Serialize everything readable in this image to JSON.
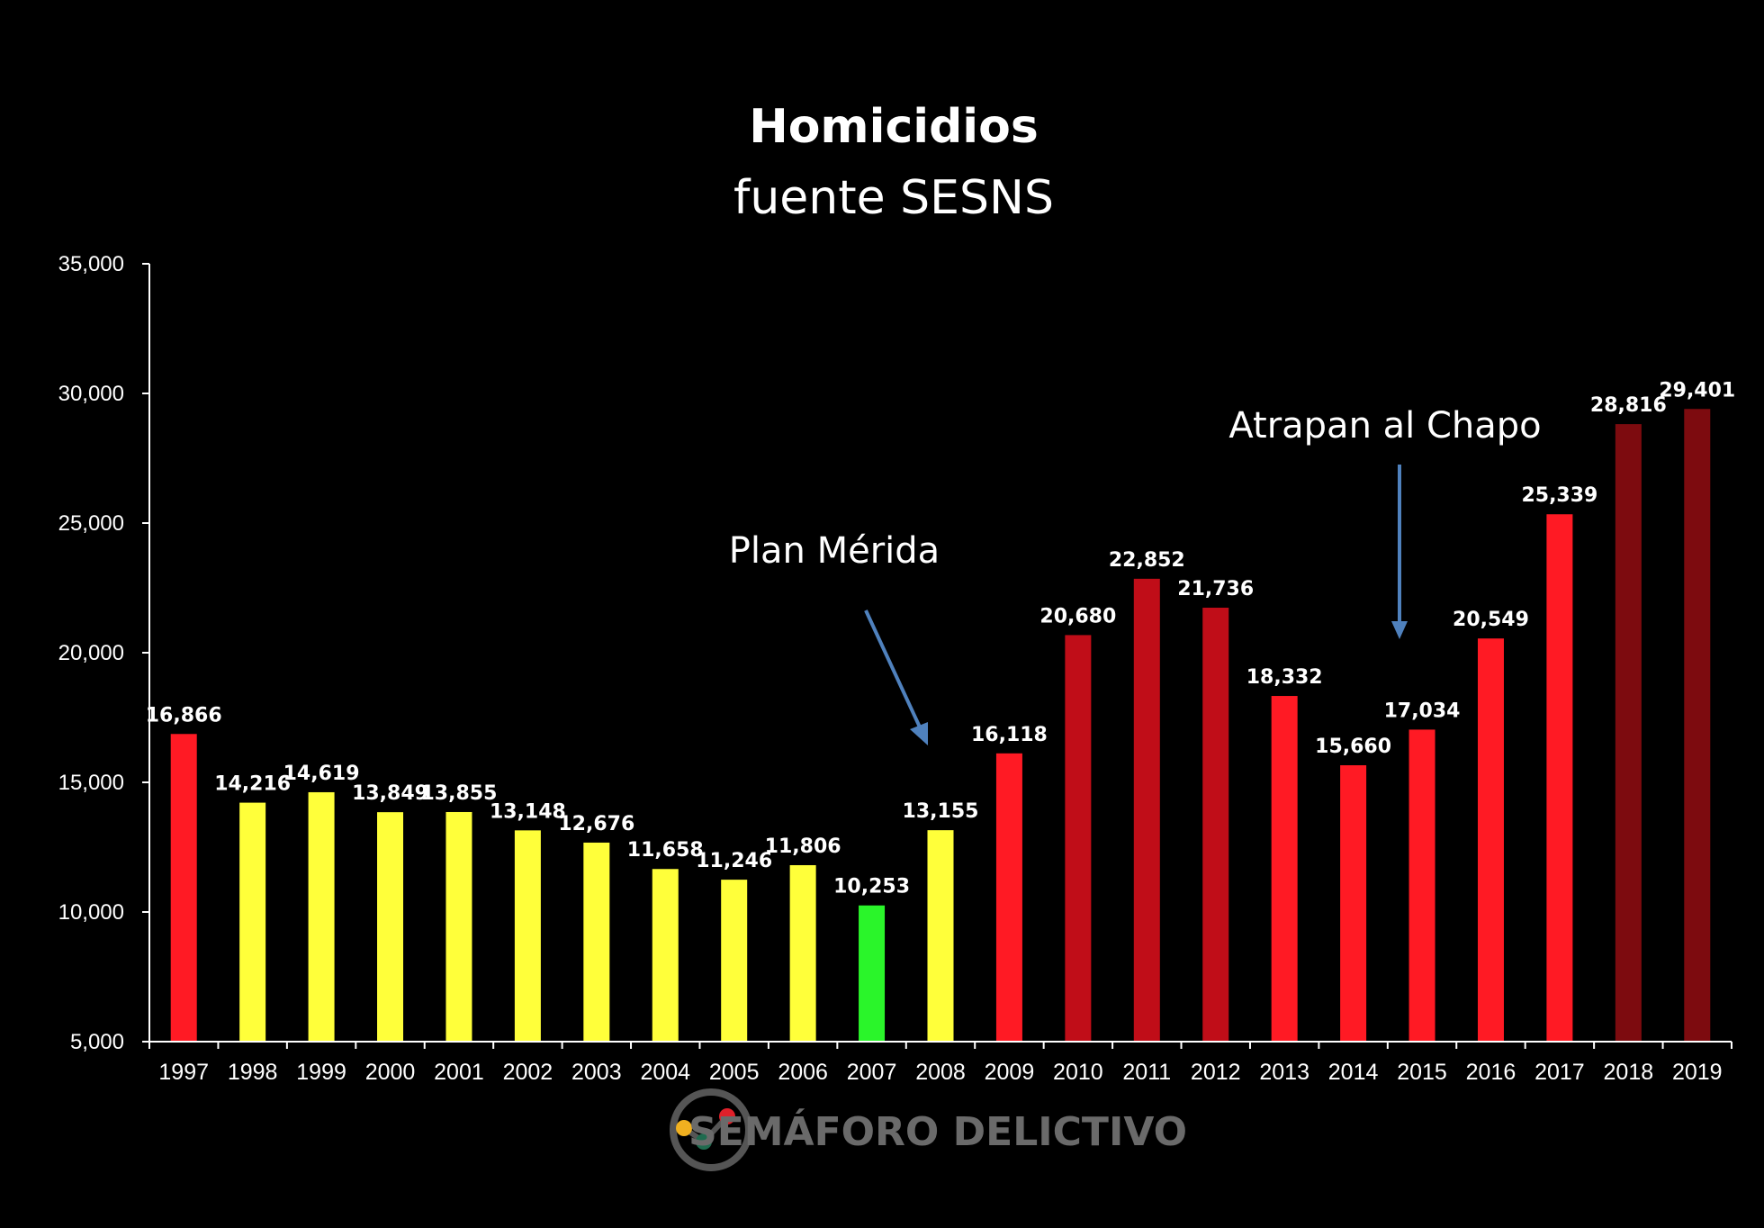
{
  "chart_data": {
    "type": "bar",
    "title": "Homicidios",
    "subtitle": "fuente SESNS",
    "categories": [
      "1997",
      "1998",
      "1999",
      "2000",
      "2001",
      "2002",
      "2003",
      "2004",
      "2005",
      "2006",
      "2007",
      "2008",
      "2009",
      "2010",
      "2011",
      "2012",
      "2013",
      "2014",
      "2015",
      "2016",
      "2017",
      "2018",
      "2019"
    ],
    "values": [
      16866,
      14216,
      14619,
      13849,
      13855,
      13148,
      12676,
      11658,
      11246,
      11806,
      10253,
      13155,
      16118,
      20680,
      22852,
      21736,
      18332,
      15660,
      17034,
      20549,
      25339,
      28816,
      29401
    ],
    "value_labels": [
      "16,866",
      "14,216",
      "14,619",
      "13,849",
      "13,855",
      "13,148",
      "12,676",
      "11,658",
      "11,246",
      "11,806",
      "10,253",
      "13,155",
      "16,118",
      "20,680",
      "22,852",
      "21,736",
      "18,332",
      "15,660",
      "17,034",
      "20,549",
      "25,339",
      "28,816",
      "29,401"
    ],
    "bar_colors": [
      "#ff1a24",
      "#ffff3a",
      "#ffff3a",
      "#ffff3a",
      "#ffff3a",
      "#ffff3a",
      "#ffff3a",
      "#ffff3a",
      "#ffff3a",
      "#ffff3a",
      "#2af52a",
      "#ffff3a",
      "#ff1a24",
      "#c00d18",
      "#c00d18",
      "#c00d18",
      "#ff1a24",
      "#ff1a24",
      "#ff1a24",
      "#ff1a24",
      "#ff1a24",
      "#7d0b0f",
      "#7d0b0f"
    ],
    "ylim": [
      5000,
      35000
    ],
    "yticks": [
      5000,
      10000,
      15000,
      20000,
      25000,
      30000,
      35000
    ],
    "ytick_labels": [
      "5,000",
      "10,000",
      "15,000",
      "20,000",
      "25,000",
      "30,000",
      "35,000"
    ],
    "xlabel": "",
    "ylabel": "",
    "grid": false,
    "annotations": [
      {
        "text": "Plan Mérida",
        "points_to": "2008"
      },
      {
        "text": "Atrapan al Chapo",
        "points_to": "2015"
      }
    ]
  },
  "brand": {
    "text": "SEMÁFORO DELICTIVO",
    "logo": "semaforo-logo-icon"
  },
  "colors": {
    "background": "#000000",
    "arrow": "#4f81bd",
    "axis": "#ffffff"
  }
}
